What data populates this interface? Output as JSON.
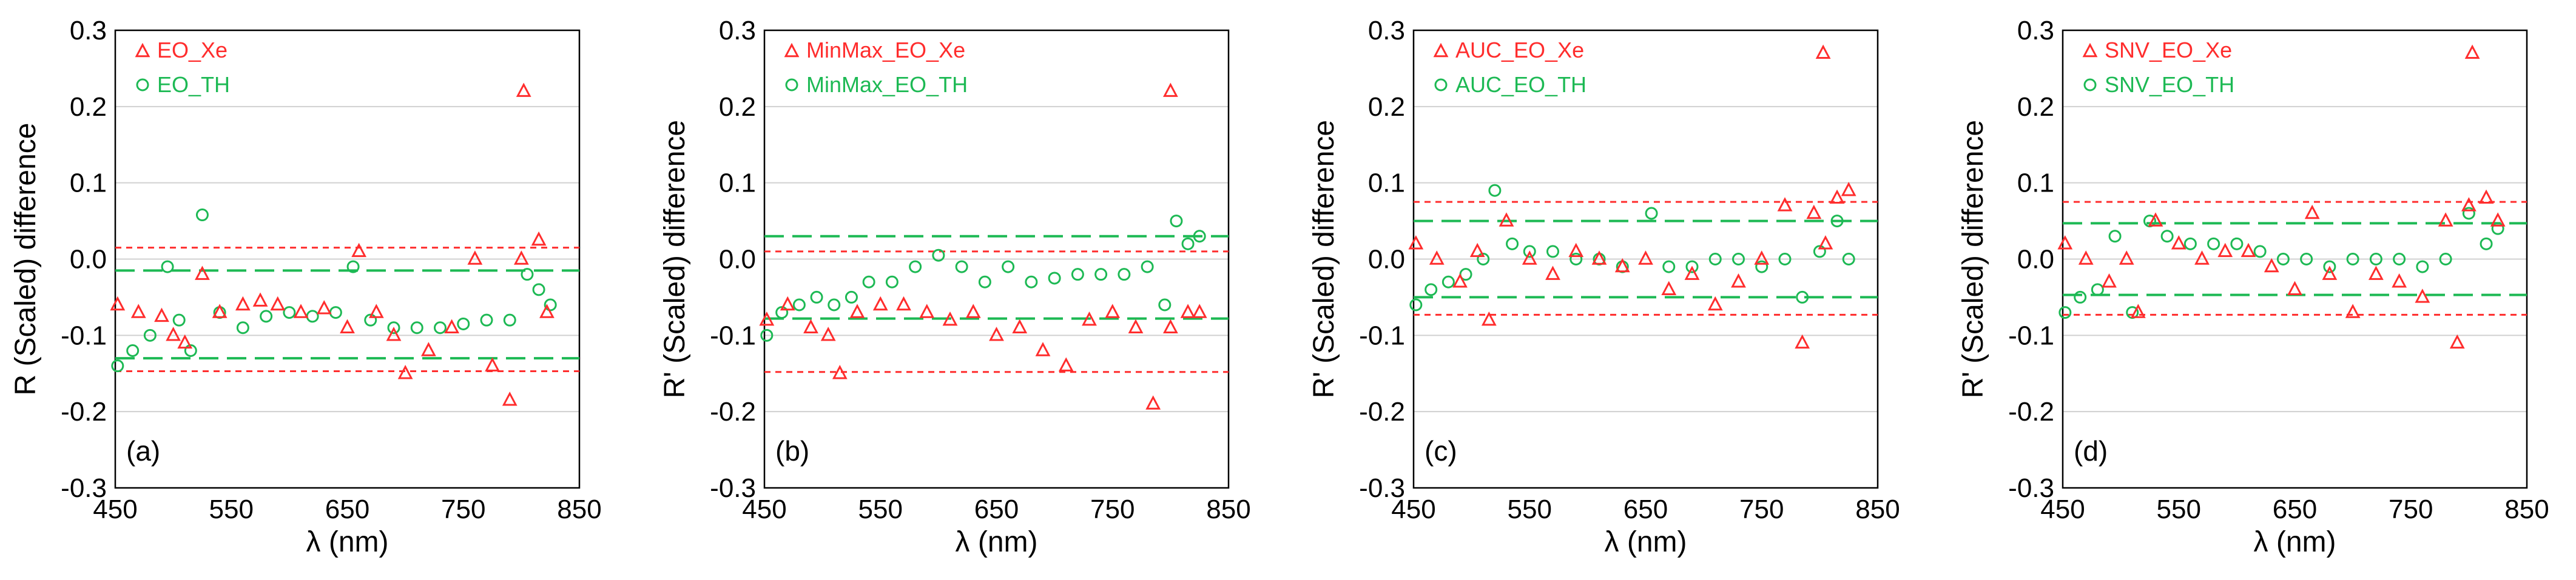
{
  "colors": {
    "xe": "#ff2d2d",
    "th": "#1db954",
    "axis": "#000000",
    "grid": "#d0d0d0"
  },
  "chart_data": [
    {
      "type": "scatter",
      "panel_label": "(a)",
      "ylabel": "R (Scaled) difference",
      "xlabel": "λ (nm)",
      "xlim": [
        450,
        850
      ],
      "ylim": [
        -0.3,
        0.3
      ],
      "xticks": [
        "450",
        "550",
        "650",
        "750",
        "850"
      ],
      "yticks": [
        "-0.3",
        "-0.2",
        "-0.1",
        "0.0",
        "0.1",
        "0.2",
        "0.3"
      ],
      "grid": true,
      "legend": [
        "EO_Xe",
        "EO_TH"
      ],
      "limit_lines": {
        "xe": [
          0.015,
          -0.147
        ],
        "th": [
          -0.015,
          -0.13
        ]
      },
      "outlier": {
        "x": 802,
        "y": 0.22
      },
      "series": [
        {
          "name": "EO_Xe",
          "marker": "triangle",
          "x": [
            452,
            470,
            490,
            500,
            510,
            525,
            540,
            560,
            575,
            590,
            610,
            630,
            650,
            660,
            675,
            690,
            700,
            720,
            740,
            760,
            775,
            790,
            800,
            815,
            822
          ],
          "y": [
            -0.06,
            -0.07,
            -0.075,
            -0.1,
            -0.11,
            -0.02,
            -0.07,
            -0.06,
            -0.055,
            -0.06,
            -0.07,
            -0.065,
            -0.09,
            0.01,
            -0.07,
            -0.1,
            -0.15,
            -0.12,
            -0.09,
            0.0,
            -0.14,
            -0.185,
            0.0,
            0.025,
            -0.07
          ]
        },
        {
          "name": "EO_TH",
          "marker": "circle",
          "x": [
            452,
            465,
            480,
            495,
            505,
            515,
            525,
            540,
            560,
            580,
            600,
            620,
            640,
            655,
            670,
            690,
            710,
            730,
            750,
            770,
            790,
            805,
            815,
            825
          ],
          "y": [
            -0.14,
            -0.12,
            -0.1,
            -0.01,
            -0.08,
            -0.12,
            0.058,
            -0.07,
            -0.09,
            -0.075,
            -0.07,
            -0.075,
            -0.07,
            -0.01,
            -0.08,
            -0.09,
            -0.09,
            -0.09,
            -0.085,
            -0.08,
            -0.08,
            -0.02,
            -0.04,
            -0.06
          ]
        }
      ]
    },
    {
      "type": "scatter",
      "panel_label": "(b)",
      "ylabel": "R' (Scaled) difference",
      "xlabel": "λ (nm)",
      "xlim": [
        450,
        850
      ],
      "ylim": [
        -0.3,
        0.3
      ],
      "xticks": [
        "450",
        "550",
        "650",
        "750",
        "850"
      ],
      "yticks": [
        "-0.3",
        "-0.2",
        "-0.1",
        "0.0",
        "0.1",
        "0.2",
        "0.3"
      ],
      "grid": true,
      "legend": [
        "MinMax_EO_Xe",
        "MinMax_EO_TH"
      ],
      "limit_lines": {
        "xe": [
          0.01,
          -0.148
        ],
        "th": [
          0.03,
          -0.078
        ]
      },
      "outlier": {
        "x": 800,
        "y": 0.22
      },
      "series": [
        {
          "name": "MinMax_EO_Xe",
          "marker": "triangle",
          "x": [
            452,
            470,
            490,
            505,
            515,
            530,
            550,
            570,
            590,
            610,
            630,
            650,
            670,
            690,
            710,
            730,
            750,
            770,
            785,
            800,
            815,
            825
          ],
          "y": [
            -0.08,
            -0.06,
            -0.09,
            -0.1,
            -0.15,
            -0.07,
            -0.06,
            -0.06,
            -0.07,
            -0.08,
            -0.07,
            -0.1,
            -0.09,
            -0.12,
            -0.14,
            -0.08,
            -0.07,
            -0.09,
            -0.19,
            -0.09,
            -0.07,
            -0.07
          ]
        },
        {
          "name": "MinMax_EO_TH",
          "marker": "circle",
          "x": [
            452,
            465,
            480,
            495,
            510,
            525,
            540,
            560,
            580,
            600,
            620,
            640,
            660,
            680,
            700,
            720,
            740,
            760,
            780,
            795,
            805,
            815,
            825
          ],
          "y": [
            -0.1,
            -0.07,
            -0.06,
            -0.05,
            -0.06,
            -0.05,
            -0.03,
            -0.03,
            -0.01,
            0.005,
            -0.01,
            -0.03,
            -0.01,
            -0.03,
            -0.025,
            -0.02,
            -0.02,
            -0.02,
            -0.01,
            -0.06,
            0.05,
            0.02,
            0.03
          ]
        }
      ]
    },
    {
      "type": "scatter",
      "panel_label": "(c)",
      "ylabel": "R' (Scaled) difference",
      "xlabel": "λ (nm)",
      "xlim": [
        450,
        850
      ],
      "ylim": [
        -0.3,
        0.3
      ],
      "xticks": [
        "450",
        "550",
        "650",
        "750",
        "850"
      ],
      "yticks": [
        "-0.3",
        "-0.2",
        "-0.1",
        "0.0",
        "0.1",
        "0.2",
        "0.3"
      ],
      "grid": true,
      "legend": [
        "AUC_EO_Xe",
        "AUC_EO_TH"
      ],
      "limit_lines": {
        "xe": [
          0.075,
          -0.073
        ],
        "th": [
          0.05,
          -0.05
        ]
      },
      "outlier": {
        "x": 803,
        "y": 0.27
      },
      "series": [
        {
          "name": "AUC_EO_Xe",
          "marker": "triangle",
          "x": [
            452,
            470,
            490,
            505,
            515,
            530,
            550,
            570,
            590,
            610,
            630,
            650,
            670,
            690,
            710,
            730,
            750,
            770,
            785,
            795,
            805,
            815,
            825
          ],
          "y": [
            0.02,
            0.0,
            -0.03,
            0.01,
            -0.08,
            0.05,
            0.0,
            -0.02,
            0.01,
            0.0,
            -0.01,
            0.0,
            -0.04,
            -0.02,
            -0.06,
            -0.03,
            0.0,
            0.07,
            -0.11,
            0.06,
            0.02,
            0.08,
            0.09
          ]
        },
        {
          "name": "AUC_EO_TH",
          "marker": "circle",
          "x": [
            452,
            465,
            480,
            495,
            510,
            520,
            535,
            550,
            570,
            590,
            610,
            630,
            655,
            670,
            690,
            710,
            730,
            750,
            770,
            785,
            800,
            815,
            825
          ],
          "y": [
            -0.06,
            -0.04,
            -0.03,
            -0.02,
            0.0,
            0.09,
            0.02,
            0.01,
            0.01,
            0.0,
            0.0,
            -0.01,
            0.06,
            -0.01,
            -0.01,
            0.0,
            0.0,
            -0.01,
            0.0,
            -0.05,
            0.01,
            0.05,
            0.0
          ]
        }
      ]
    },
    {
      "type": "scatter",
      "panel_label": "(d)",
      "ylabel": "R' (Scaled) difference",
      "xlabel": "λ (nm)",
      "xlim": [
        450,
        850
      ],
      "ylim": [
        -0.3,
        0.3
      ],
      "xticks": [
        "450",
        "550",
        "650",
        "750",
        "850"
      ],
      "yticks": [
        "-0.3",
        "-0.2",
        "-0.1",
        "0.0",
        "0.1",
        "0.2",
        "0.3"
      ],
      "grid": true,
      "legend": [
        "SNV_EO_Xe",
        "SNV_EO_TH"
      ],
      "limit_lines": {
        "xe": [
          0.075,
          -0.073
        ],
        "th": [
          0.047,
          -0.047
        ]
      },
      "outlier": {
        "x": 803,
        "y": 0.27
      },
      "series": [
        {
          "name": "SNV_EO_Xe",
          "marker": "triangle",
          "x": [
            452,
            470,
            490,
            505,
            515,
            530,
            550,
            570,
            590,
            610,
            630,
            650,
            665,
            680,
            700,
            720,
            740,
            760,
            780,
            790,
            800,
            815,
            825
          ],
          "y": [
            0.02,
            0.0,
            -0.03,
            0.0,
            -0.07,
            0.05,
            0.02,
            0.0,
            0.01,
            0.01,
            -0.01,
            -0.04,
            0.06,
            -0.02,
            -0.07,
            -0.02,
            -0.03,
            -0.05,
            0.05,
            -0.11,
            0.07,
            0.08,
            0.05
          ]
        },
        {
          "name": "SNV_EO_TH",
          "marker": "circle",
          "x": [
            452,
            465,
            480,
            495,
            510,
            525,
            540,
            560,
            580,
            600,
            620,
            640,
            660,
            680,
            700,
            720,
            740,
            760,
            780,
            800,
            815,
            825
          ],
          "y": [
            -0.07,
            -0.05,
            -0.04,
            0.03,
            -0.07,
            0.05,
            0.03,
            0.02,
            0.02,
            0.02,
            0.01,
            0.0,
            0.0,
            -0.01,
            0.0,
            0.0,
            0.0,
            -0.01,
            0.0,
            0.06,
            0.02,
            0.04
          ]
        }
      ]
    }
  ]
}
